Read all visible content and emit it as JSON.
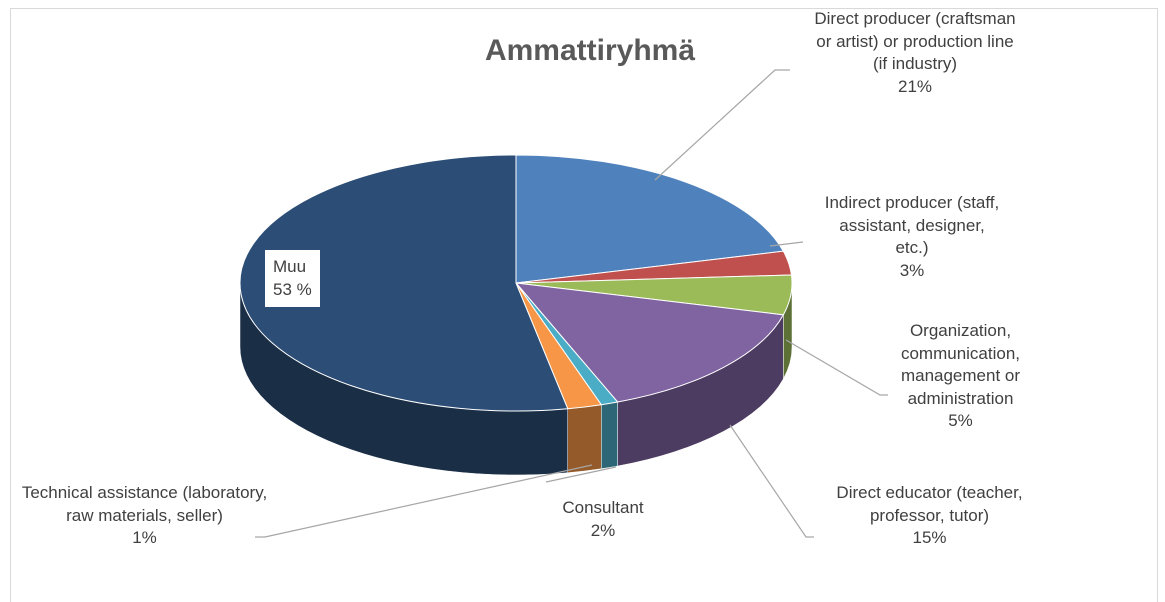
{
  "chart_data": {
    "type": "pie3d",
    "title": "Ammattiryhmä",
    "categories": [
      "Direct producer (craftsman or artist) or production line (if industry)",
      "Indirect producer (staff, assistant, designer, etc.)",
      "Organization, communication, management or administration",
      "Direct educator (teacher, professor, tutor)",
      "Technical assistance (laboratory, raw materials, seller)",
      "Consultant",
      "Muu"
    ],
    "values": [
      21,
      3,
      5,
      15,
      1,
      2,
      53
    ],
    "value_labels": [
      "21%",
      "3%",
      "5%",
      "15%",
      "1%",
      "2%",
      "53 %"
    ],
    "colors": [
      "#4f81bd",
      "#c0504d",
      "#9bbb59",
      "#8064a2",
      "#4bacc6",
      "#f79646",
      "#2c4d75"
    ]
  }
}
